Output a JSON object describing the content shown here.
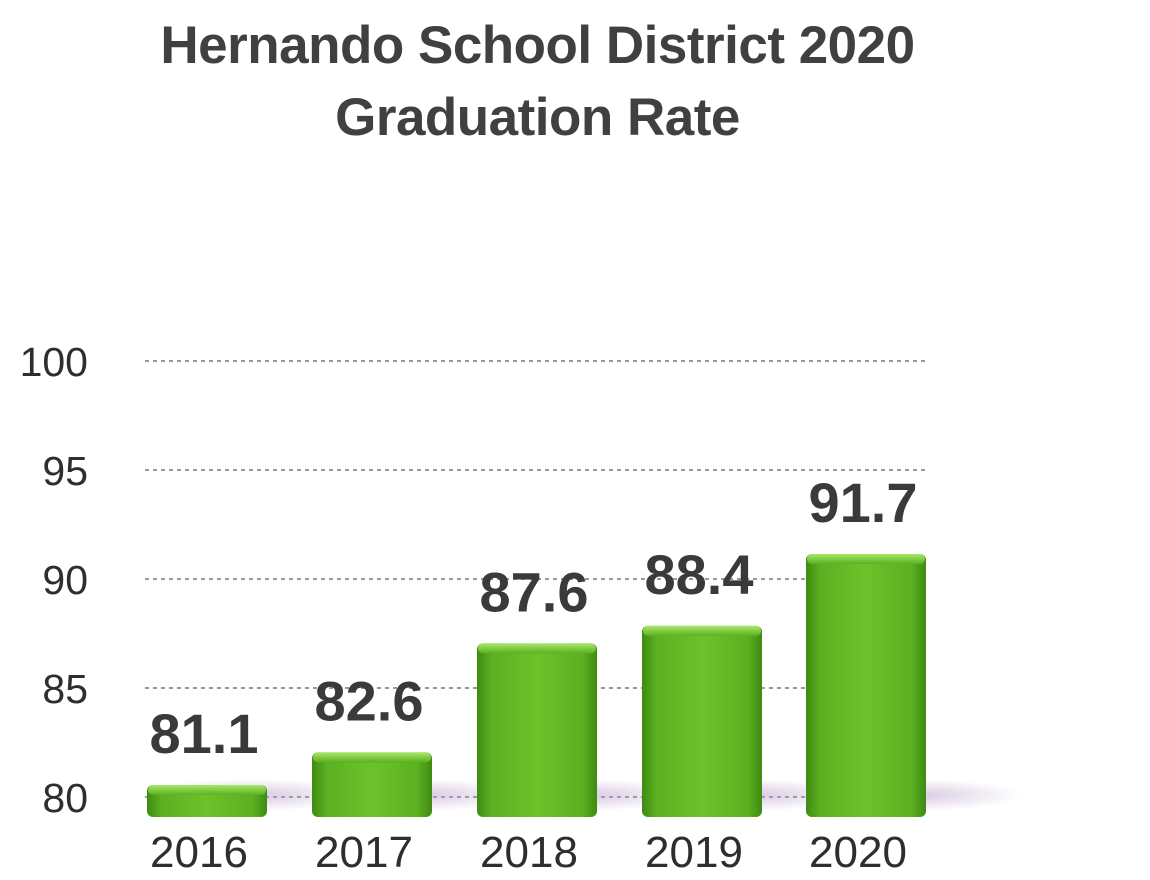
{
  "chart_data": {
    "type": "bar",
    "title": [
      "Hernando School District 2020",
      "Graduation Rate"
    ],
    "categories": [
      "2016",
      "2017",
      "2018",
      "2019",
      "2020"
    ],
    "values": [
      81.1,
      82.6,
      87.6,
      88.4,
      91.7
    ],
    "data_labels": [
      "81.1",
      "82.6",
      "87.6",
      "88.4",
      "91.7"
    ],
    "yticks": [
      "80",
      "85",
      "90",
      "95",
      "100"
    ],
    "ylim": [
      80,
      100
    ],
    "grid": true,
    "legend": "none",
    "xlabel": "",
    "ylabel": "",
    "colors": {
      "bar": "#5cb021",
      "bar_light": "#7fd23a",
      "bar_dark": "#3f8a12",
      "grid": "#9a9a9a",
      "text": "#333333"
    }
  }
}
